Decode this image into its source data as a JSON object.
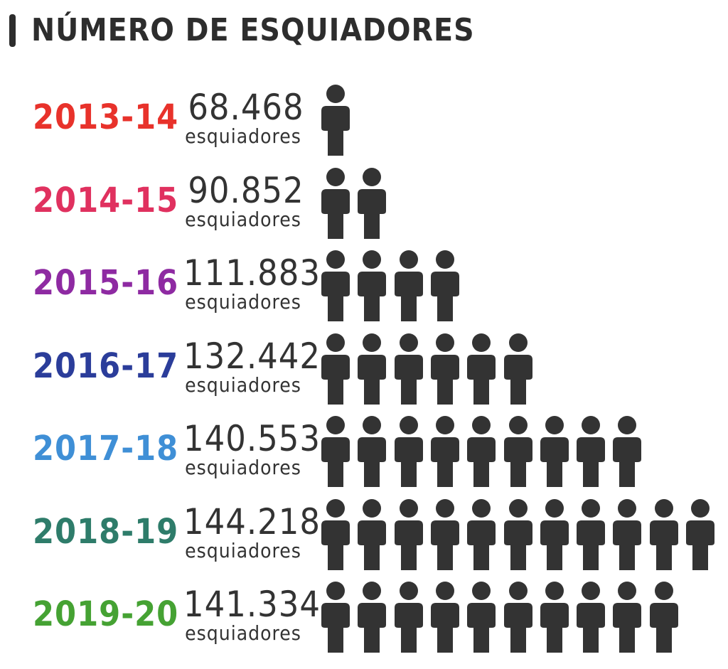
{
  "title": "NÚMERO DE ESQUIADORES",
  "chart_data": {
    "type": "bar",
    "title": "NÚMERO DE ESQUIADORES",
    "categories": [
      "2013-14",
      "2014-15",
      "2015-16",
      "2016-17",
      "2017-18",
      "2018-19",
      "2019-20"
    ],
    "value_labels": [
      "68.468",
      "90.852",
      "111.883",
      "132.442",
      "140.553",
      "144.218",
      "141.334"
    ],
    "values": [
      68468,
      90852,
      111883,
      132442,
      140553,
      144218,
      141334
    ],
    "unit_label": "esquiadores",
    "icon_counts": [
      1,
      2,
      4,
      6,
      9,
      11,
      10
    ],
    "category_colors": [
      "#e8322b",
      "#e0315f",
      "#8e2aa2",
      "#2b3d9a",
      "#3f8fd6",
      "#2e7c6a",
      "#45a233"
    ],
    "icon": "person-icon",
    "icon_color": "#333333"
  }
}
